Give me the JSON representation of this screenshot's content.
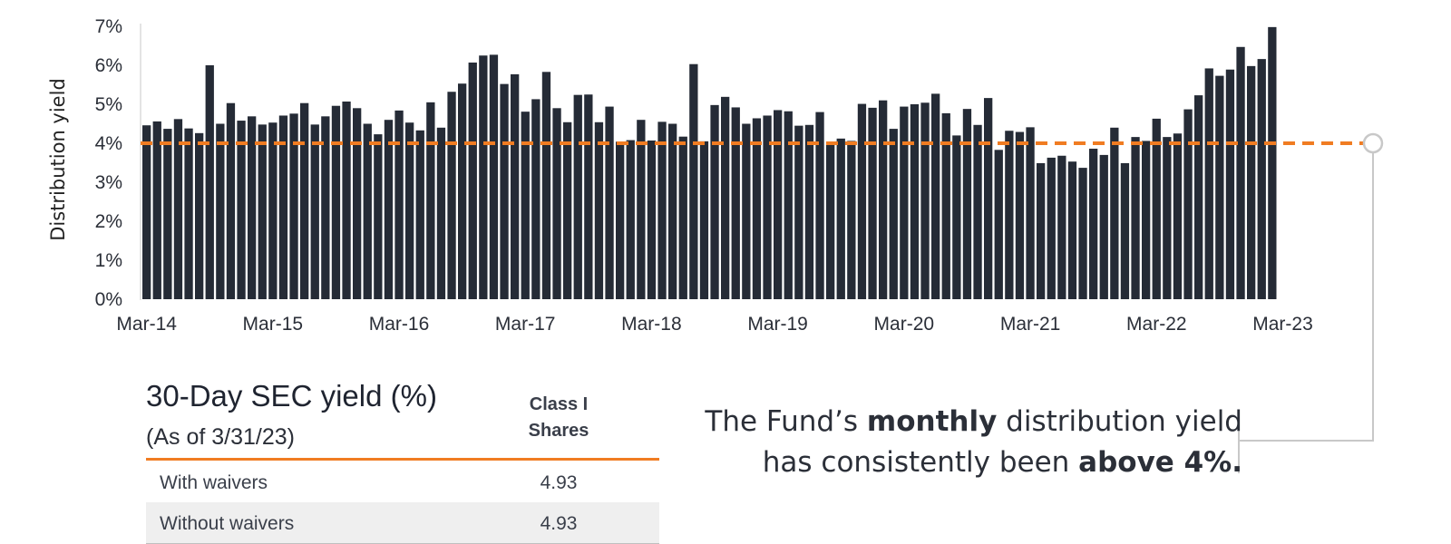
{
  "chart_data": {
    "type": "bar",
    "ylabel": "Distribution yield",
    "ylim": [
      0,
      7
    ],
    "ytick_labels": [
      "0%",
      "1%",
      "2%",
      "3%",
      "4%",
      "5%",
      "6%",
      "7%"
    ],
    "x_tick_labels": [
      "Mar-14",
      "Mar-15",
      "Mar-16",
      "Mar-17",
      "Mar-18",
      "Mar-19",
      "Mar-20",
      "Mar-21",
      "Mar-22",
      "Mar-23"
    ],
    "reference_line": {
      "value": 4.0,
      "style": "dashed"
    },
    "series": [
      {
        "name": "Monthly distribution yield (%)",
        "values": [
          4.46,
          4.56,
          4.37,
          4.62,
          4.38,
          4.26,
          6.0,
          4.5,
          5.03,
          4.58,
          4.69,
          4.48,
          4.53,
          4.71,
          4.76,
          5.03,
          4.48,
          4.69,
          4.96,
          5.07,
          4.9,
          4.5,
          4.23,
          4.6,
          4.84,
          4.53,
          4.33,
          5.05,
          4.4,
          5.32,
          5.53,
          6.07,
          6.25,
          6.27,
          5.52,
          5.77,
          4.81,
          5.13,
          5.83,
          4.9,
          4.54,
          5.24,
          5.25,
          4.54,
          4.94,
          4.04,
          4.08,
          4.6,
          4.07,
          4.55,
          4.5,
          4.17,
          6.03,
          4.05,
          4.98,
          5.19,
          4.92,
          4.5,
          4.64,
          4.71,
          4.85,
          4.82,
          4.45,
          4.47,
          4.8,
          4.02,
          4.12,
          4.06,
          5.01,
          4.91,
          5.1,
          4.37,
          4.94,
          5.0,
          5.04,
          5.27,
          4.77,
          4.2,
          4.88,
          4.47,
          5.16,
          3.83,
          4.32,
          4.29,
          4.41,
          3.49,
          3.63,
          3.68,
          3.53,
          3.37,
          3.86,
          3.7,
          4.4,
          3.49,
          4.16,
          4.06,
          4.63,
          4.16,
          4.25,
          4.87,
          5.23,
          5.92,
          5.73,
          5.89,
          6.47,
          5.98,
          6.16,
          6.98
        ]
      }
    ]
  },
  "table": {
    "title": "30-Day SEC yield (%)",
    "subtitle": "(As of 3/31/23)",
    "column_header_line1": "Class I",
    "column_header_line2": "Shares",
    "rows": [
      {
        "label": "With waivers",
        "value": "4.93"
      },
      {
        "label": "Without waivers",
        "value": "4.93"
      }
    ]
  },
  "callout": {
    "line1_pre": "The Fund’s ",
    "line1_bold": "monthly",
    "line1_post": " distribution yield",
    "line2_pre": "has consistently been ",
    "line2_bold": "above 4%."
  },
  "colors": {
    "bar": "#252b36",
    "reference_line": "#f07c22",
    "axis": "#c8c8c8",
    "connector": "#c8c8c8",
    "table_rule": "#f07c22"
  }
}
